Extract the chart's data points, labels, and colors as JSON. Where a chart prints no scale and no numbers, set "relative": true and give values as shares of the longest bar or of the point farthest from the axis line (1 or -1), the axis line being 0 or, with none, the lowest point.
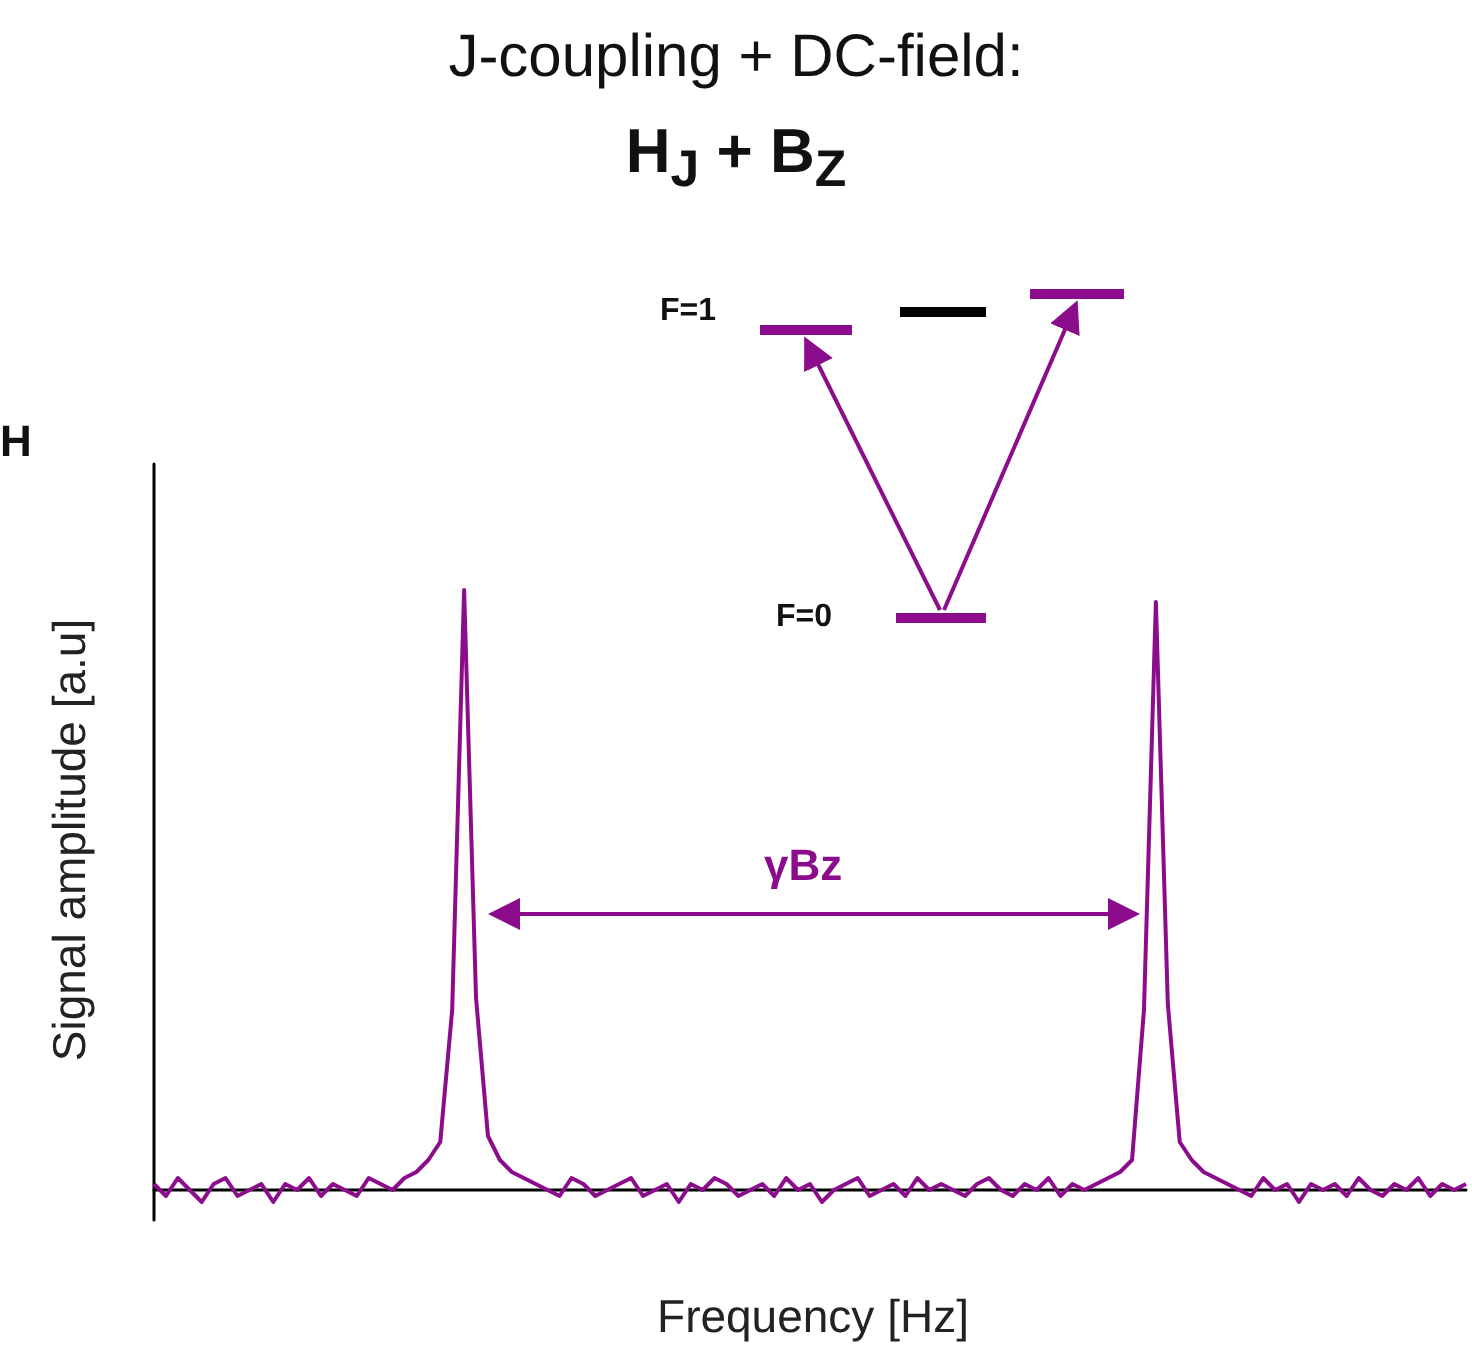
{
  "chart_data": {
    "type": "line",
    "title": "J-coupling + DC-field:",
    "subtitle": "H$_{J}$ + B$_{Z}$",
    "xlabel": "Frequency [Hz]",
    "ylabel": "Signal amplitude [a.u]",
    "relative": true,
    "marker": "none",
    "line_style": "solid",
    "grid": false,
    "annotations": [
      "H",
      "F=1",
      "F=0",
      "γBz"
    ],
    "categories": [
      null,
      null,
      null,
      null,
      null,
      null,
      null,
      null,
      null,
      null,
      null,
      null,
      null,
      null,
      null,
      null,
      null,
      null,
      null,
      null,
      null,
      null,
      null,
      null,
      null,
      null,
      null,
      null,
      null,
      null,
      null,
      null,
      null,
      null,
      null,
      null,
      null,
      null,
      null,
      null,
      null,
      null,
      null,
      null,
      null,
      null,
      null,
      null,
      null,
      null,
      null,
      null,
      null,
      null,
      null,
      null,
      null,
      null,
      null,
      null,
      null,
      null,
      null,
      null,
      null,
      null,
      null,
      null,
      null,
      null,
      null,
      null,
      null,
      null,
      null,
      null,
      null,
      null,
      null,
      null,
      null,
      null,
      null,
      null,
      null,
      null,
      null,
      null,
      null,
      null,
      null,
      null,
      null,
      null,
      null,
      null,
      null,
      null,
      null,
      null,
      null,
      null,
      null,
      null,
      null,
      null,
      null,
      null,
      null,
      null,
      null
    ],
    "series": [
      {
        "color": "#8b0d8b",
        "values": [
          0.01,
          -0.01,
          0.02,
          0,
          -0.02,
          0.01,
          0.02,
          -0.01,
          0,
          0.01,
          -0.02,
          0.01,
          0,
          0.02,
          -0.01,
          0.01,
          0,
          -0.01,
          0.02,
          0.01,
          0,
          0.02,
          0.03,
          0.05,
          0.08,
          0.3,
          1,
          0.32,
          0.09,
          0.05,
          0.03,
          0.02,
          0.01,
          0,
          -0.01,
          0.02,
          0.01,
          -0.01,
          0,
          0.01,
          0.02,
          -0.01,
          0,
          0.01,
          -0.02,
          0.01,
          0,
          0.02,
          0.01,
          -0.01,
          0,
          0.01,
          -0.01,
          0.02,
          0,
          0.01,
          -0.02,
          0,
          0.01,
          0.02,
          -0.01,
          0,
          0.01,
          -0.01,
          0.02,
          0,
          0.01,
          0,
          -0.01,
          0.01,
          0.02,
          0,
          -0.01,
          0.01,
          0,
          0.02,
          -0.01,
          0.01,
          0,
          0.01,
          0.02,
          0.03,
          0.05,
          0.3,
          0.98,
          0.31,
          0.08,
          0.05,
          0.03,
          0.02,
          0.01,
          0,
          -0.01,
          0.02,
          0,
          0.01,
          -0.02,
          0.01,
          0,
          0.01,
          -0.01,
          0.02,
          0,
          -0.01,
          0.01,
          0,
          0.02,
          -0.01,
          0.01,
          0,
          0.01
        ]
      }
    ]
  }
}
